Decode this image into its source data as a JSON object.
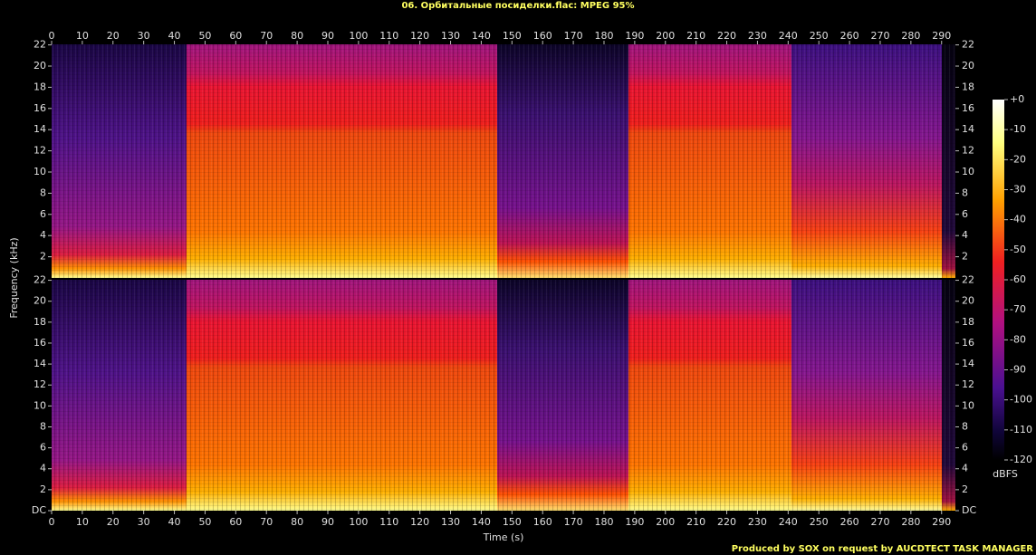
{
  "chart_data": {
    "type": "spectrogram",
    "title": "06. Орбитальные посиделки.flac: MPEG 95%",
    "xlabel": "Time (s)",
    "ylabel": "Frequency (kHz)",
    "footer": "Produced by SOX on request by AUCDTECT TASK MANAGER",
    "xlim": [
      0,
      294.5
    ],
    "xticks": [
      0,
      10,
      20,
      30,
      40,
      50,
      60,
      70,
      80,
      90,
      100,
      110,
      120,
      130,
      140,
      150,
      160,
      170,
      180,
      190,
      200,
      210,
      220,
      230,
      240,
      250,
      260,
      270,
      280,
      290
    ],
    "panels": [
      {
        "ylim": [
          0,
          22.05
        ],
        "yticks": [
          2,
          4,
          6,
          8,
          10,
          12,
          14,
          16,
          18,
          20,
          22
        ]
      },
      {
        "ylim": [
          0,
          22.05
        ],
        "yticks": [
          {
            "value": 0,
            "label": "DC"
          },
          2,
          4,
          6,
          8,
          10,
          12,
          14,
          16,
          18,
          20,
          22
        ]
      }
    ],
    "colorbar": {
      "label": "dBFS",
      "lim": [
        -120,
        0
      ],
      "ticks": [
        {
          "value": 0,
          "label": "+0"
        },
        -10,
        -20,
        -30,
        -40,
        -50,
        -60,
        -70,
        -80,
        -90,
        -100,
        -110,
        -120
      ]
    }
  }
}
